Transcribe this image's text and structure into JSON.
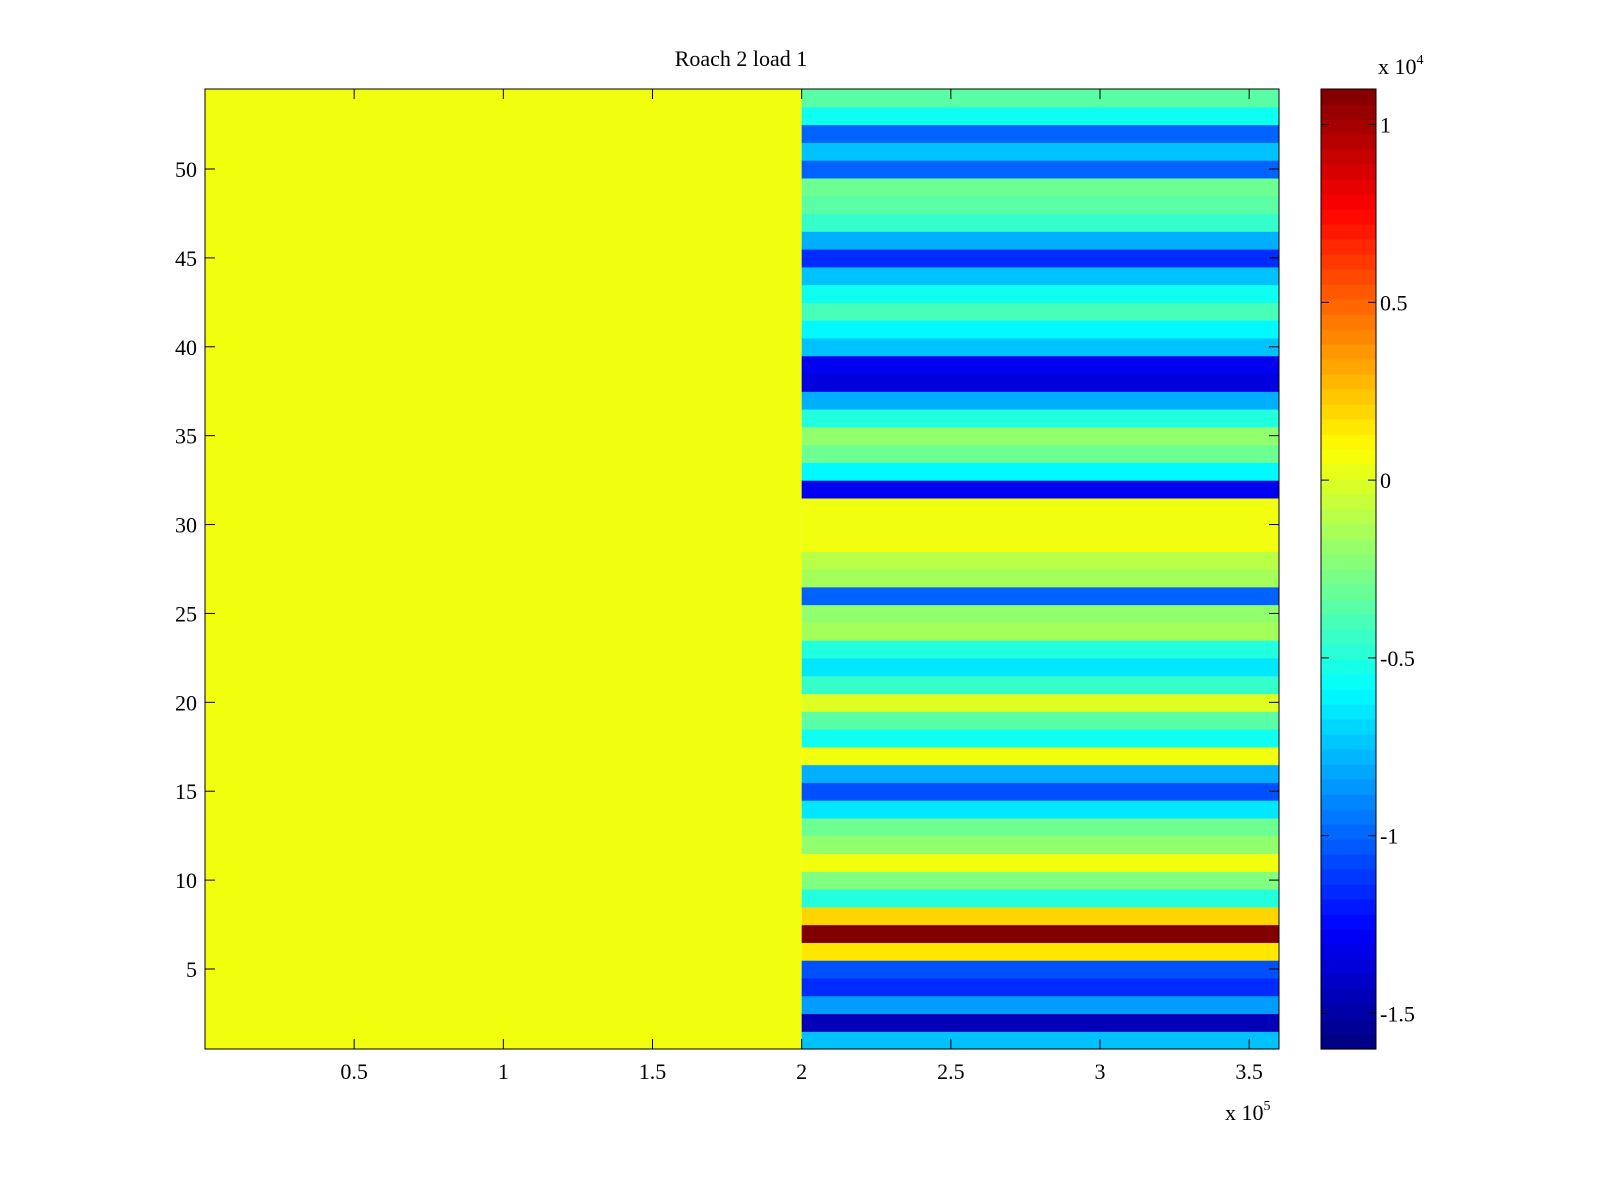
{
  "chart_data": {
    "type": "heatmap",
    "title": "Roach 2 load 1",
    "xlabel": "",
    "ylabel": "",
    "colormap": "jet",
    "xlim": [
      0,
      360000
    ],
    "ylim": [
      0.5,
      54.5
    ],
    "x_ticks": [
      0.5,
      1,
      1.5,
      2,
      2.5,
      3,
      3.5
    ],
    "x_tick_labels": [
      "0.5",
      "1",
      "1.5",
      "2",
      "2.5",
      "3",
      "3.5"
    ],
    "x_exponent_label": "x 10",
    "x_exponent": "5",
    "y_ticks": [
      5,
      10,
      15,
      20,
      25,
      30,
      35,
      40,
      45,
      50
    ],
    "y_tick_labels": [
      "5",
      "10",
      "15",
      "20",
      "25",
      "30",
      "35",
      "40",
      "45",
      "50"
    ],
    "colorbar": {
      "clim": [
        -1.6,
        1.1
      ],
      "ticks": [
        -1.5,
        -1,
        -0.5,
        0,
        0.5,
        1
      ],
      "tick_labels": [
        "-1.5",
        "-1",
        "-0.5",
        "0",
        "0.5",
        "1"
      ],
      "exponent_label": "x 10",
      "exponent": "4"
    },
    "grid": false,
    "split_x": 200000,
    "left_region_value": 0.05,
    "rows": [
      1,
      2,
      3,
      4,
      5,
      6,
      7,
      8,
      9,
      10,
      11,
      12,
      13,
      14,
      15,
      16,
      17,
      18,
      19,
      20,
      21,
      22,
      23,
      24,
      25,
      26,
      27,
      28,
      29,
      30,
      31,
      32,
      33,
      34,
      35,
      36,
      37,
      38,
      39,
      40,
      41,
      42,
      43,
      44,
      45,
      46,
      47,
      48,
      49,
      50,
      51,
      52,
      53,
      54
    ],
    "right_region_values": [
      -0.75,
      -1.45,
      -0.85,
      -1.15,
      -1.05,
      0.15,
      1.1,
      0.2,
      -0.5,
      -0.25,
      0.05,
      -0.2,
      -0.3,
      -0.65,
      -1.05,
      -0.8,
      0.05,
      -0.55,
      -0.35,
      0.0,
      -0.45,
      -0.65,
      -0.5,
      -0.15,
      -0.2,
      -1.0,
      -0.15,
      -0.1,
      0.05,
      0.05,
      0.05,
      -1.3,
      -0.6,
      -0.3,
      -0.2,
      -0.5,
      -0.8,
      -1.35,
      -1.3,
      -0.75,
      -0.6,
      -0.4,
      -0.55,
      -0.75,
      -1.15,
      -0.8,
      -0.45,
      -0.35,
      -0.3,
      -1.0,
      -0.75,
      -1.0,
      -0.55,
      -0.35
    ]
  }
}
